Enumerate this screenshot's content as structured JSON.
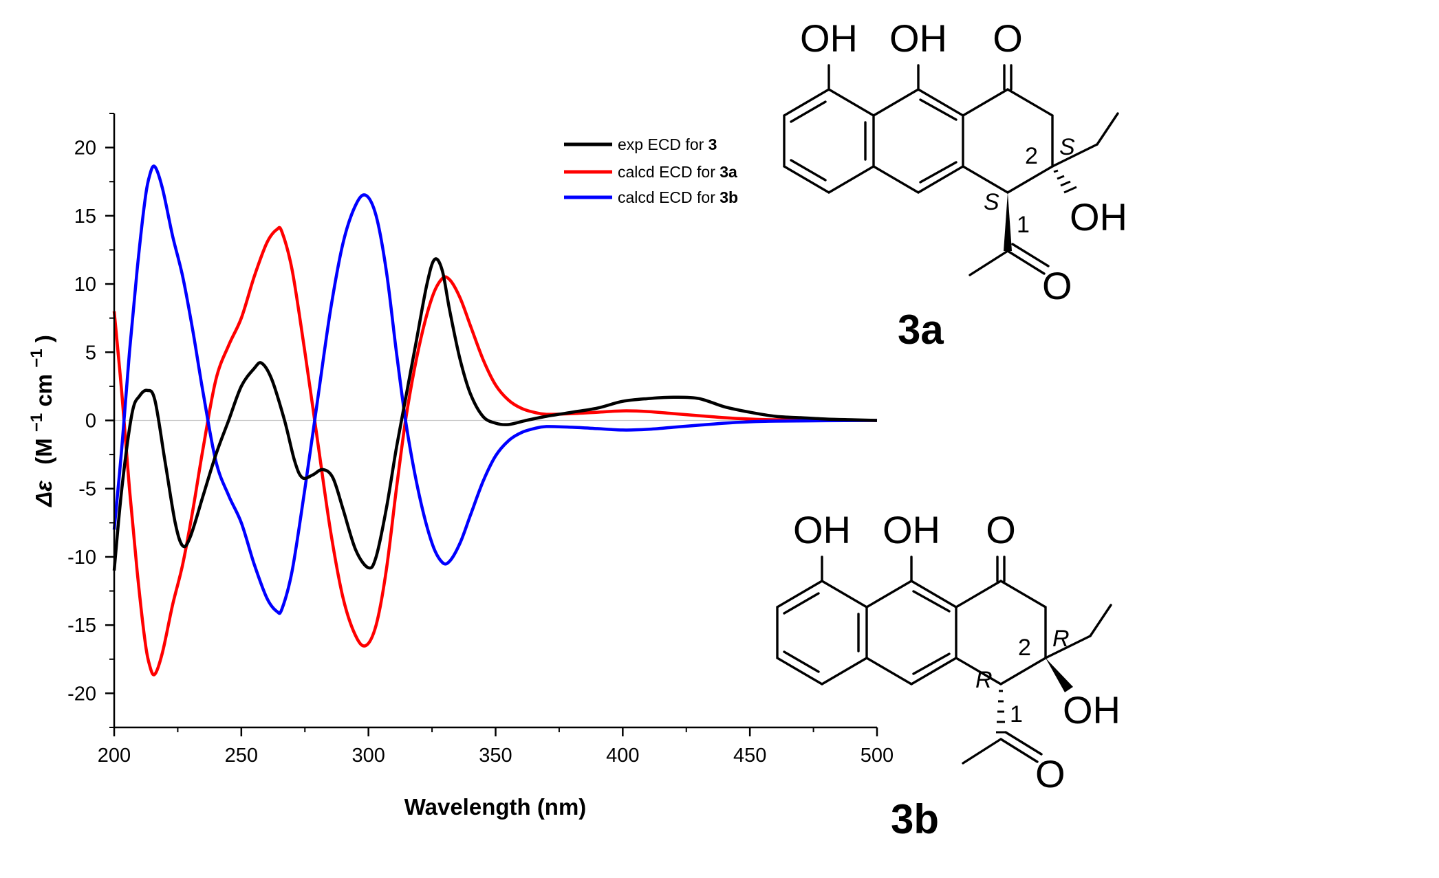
{
  "chart_data": {
    "type": "line",
    "xlabel": "Wavelength (nm)",
    "ylabel": {
      "symbol": "Δε",
      "open": "(M",
      "sup1": "−1",
      "mid": "cm",
      "sup2": "−1",
      "close": ")"
    },
    "xlim": [
      200,
      500
    ],
    "ylim": [
      -22.5,
      22.5
    ],
    "xticks": [
      200,
      250,
      300,
      350,
      400,
      450,
      500
    ],
    "yticks": [
      20,
      15,
      10,
      5,
      0,
      -5,
      -10,
      -15,
      -20
    ],
    "x_tick_labels": [
      "200",
      "250",
      "300",
      "350",
      "400",
      "450",
      "500"
    ],
    "y_tick_labels": [
      "20",
      "15",
      "10",
      "5",
      "0",
      "-5",
      "-10",
      "-15",
      "-20"
    ],
    "zero_line": true,
    "grid": false,
    "legend_position": "top-right",
    "series": [
      {
        "name": "exp ECD for 3",
        "label_prefix": "exp ECD for ",
        "label_bold": "3",
        "color": "#000000",
        "points": [
          [
            200,
            -11
          ],
          [
            203,
            -5
          ],
          [
            207,
            0.5
          ],
          [
            210,
            1.8
          ],
          [
            213,
            2.2
          ],
          [
            216,
            1.5
          ],
          [
            220,
            -3
          ],
          [
            224,
            -7.5
          ],
          [
            227,
            -9.2
          ],
          [
            230,
            -8.5
          ],
          [
            235,
            -5.5
          ],
          [
            240,
            -2.5
          ],
          [
            245,
            0
          ],
          [
            250,
            2.5
          ],
          [
            255,
            3.8
          ],
          [
            258,
            4.2
          ],
          [
            262,
            3
          ],
          [
            267,
            0
          ],
          [
            271,
            -3
          ],
          [
            274,
            -4.2
          ],
          [
            278,
            -4
          ],
          [
            282,
            -3.6
          ],
          [
            286,
            -4.2
          ],
          [
            290,
            -6.5
          ],
          [
            295,
            -9.5
          ],
          [
            300,
            -10.8
          ],
          [
            303,
            -10
          ],
          [
            307,
            -6.5
          ],
          [
            311,
            -2
          ],
          [
            315,
            2
          ],
          [
            319,
            6
          ],
          [
            323,
            10
          ],
          [
            326,
            11.8
          ],
          [
            329,
            11
          ],
          [
            332,
            8
          ],
          [
            336,
            4.5
          ],
          [
            340,
            2
          ],
          [
            345,
            0.3
          ],
          [
            350,
            -0.2
          ],
          [
            355,
            -0.3
          ],
          [
            362,
            0
          ],
          [
            370,
            0.3
          ],
          [
            380,
            0.6
          ],
          [
            390,
            0.9
          ],
          [
            400,
            1.4
          ],
          [
            410,
            1.6
          ],
          [
            420,
            1.7
          ],
          [
            430,
            1.6
          ],
          [
            440,
            1
          ],
          [
            450,
            0.6
          ],
          [
            460,
            0.3
          ],
          [
            470,
            0.2
          ],
          [
            480,
            0.1
          ],
          [
            490,
            0.05
          ],
          [
            500,
            0
          ]
        ]
      },
      {
        "name": "calcd ECD for 3a",
        "label_prefix": "calcd ECD for ",
        "label_bold": "3a",
        "color": "#ff0000",
        "points": [
          [
            200,
            8
          ],
          [
            203,
            2
          ],
          [
            206,
            -5
          ],
          [
            209,
            -11
          ],
          [
            212,
            -16
          ],
          [
            214,
            -18
          ],
          [
            216,
            -18.6
          ],
          [
            219,
            -17
          ],
          [
            223,
            -13.5
          ],
          [
            227,
            -10.5
          ],
          [
            231,
            -6.5
          ],
          [
            235,
            -2
          ],
          [
            240,
            3
          ],
          [
            245,
            5.5
          ],
          [
            250,
            7.5
          ],
          [
            255,
            10.5
          ],
          [
            260,
            13
          ],
          [
            264,
            14
          ],
          [
            266,
            13.8
          ],
          [
            270,
            11
          ],
          [
            275,
            5
          ],
          [
            280,
            -1.5
          ],
          [
            285,
            -8
          ],
          [
            290,
            -13
          ],
          [
            295,
            -15.8
          ],
          [
            299,
            -16.5
          ],
          [
            303,
            -15
          ],
          [
            307,
            -11
          ],
          [
            311,
            -5
          ],
          [
            315,
            0.5
          ],
          [
            320,
            5.5
          ],
          [
            325,
            9
          ],
          [
            329,
            10.4
          ],
          [
            332,
            10.3
          ],
          [
            336,
            9
          ],
          [
            340,
            7
          ],
          [
            345,
            4.5
          ],
          [
            350,
            2.6
          ],
          [
            355,
            1.5
          ],
          [
            360,
            0.9
          ],
          [
            365,
            0.6
          ],
          [
            370,
            0.45
          ],
          [
            380,
            0.5
          ],
          [
            390,
            0.6
          ],
          [
            400,
            0.7
          ],
          [
            410,
            0.65
          ],
          [
            420,
            0.5
          ],
          [
            430,
            0.35
          ],
          [
            440,
            0.2
          ],
          [
            450,
            0.1
          ],
          [
            460,
            0.05
          ],
          [
            480,
            0.02
          ],
          [
            500,
            0
          ]
        ]
      },
      {
        "name": "calcd ECD for 3b",
        "label_prefix": "calcd ECD for ",
        "label_bold": "3b",
        "color": "#0000ff",
        "points": [
          [
            200,
            -8
          ],
          [
            203,
            -2
          ],
          [
            206,
            5
          ],
          [
            209,
            11
          ],
          [
            212,
            16
          ],
          [
            214,
            18
          ],
          [
            216,
            18.6
          ],
          [
            219,
            17
          ],
          [
            223,
            13.5
          ],
          [
            227,
            10.5
          ],
          [
            231,
            6.5
          ],
          [
            235,
            2
          ],
          [
            240,
            -3
          ],
          [
            245,
            -5.5
          ],
          [
            250,
            -7.5
          ],
          [
            255,
            -10.5
          ],
          [
            260,
            -13
          ],
          [
            264,
            -14
          ],
          [
            266,
            -13.8
          ],
          [
            270,
            -11
          ],
          [
            275,
            -5
          ],
          [
            280,
            1.5
          ],
          [
            285,
            8
          ],
          [
            290,
            13
          ],
          [
            295,
            15.8
          ],
          [
            299,
            16.5
          ],
          [
            303,
            15
          ],
          [
            307,
            11
          ],
          [
            311,
            5
          ],
          [
            315,
            -0.5
          ],
          [
            320,
            -5.5
          ],
          [
            325,
            -9
          ],
          [
            329,
            -10.4
          ],
          [
            332,
            -10.3
          ],
          [
            336,
            -9
          ],
          [
            340,
            -7
          ],
          [
            345,
            -4.5
          ],
          [
            350,
            -2.6
          ],
          [
            355,
            -1.5
          ],
          [
            360,
            -0.9
          ],
          [
            365,
            -0.6
          ],
          [
            370,
            -0.45
          ],
          [
            380,
            -0.5
          ],
          [
            390,
            -0.6
          ],
          [
            400,
            -0.7
          ],
          [
            410,
            -0.65
          ],
          [
            420,
            -0.5
          ],
          [
            430,
            -0.35
          ],
          [
            440,
            -0.2
          ],
          [
            450,
            -0.1
          ],
          [
            460,
            -0.05
          ],
          [
            480,
            -0.02
          ],
          [
            500,
            0
          ]
        ]
      }
    ]
  },
  "structures": {
    "s3a": {
      "name": "3a",
      "oh_left": "OH",
      "oh_mid": "OH",
      "o_top": "O",
      "stereo_c2": "S",
      "stereo_c1": "S",
      "num_c2": "2",
      "num_c1": "1",
      "oh_c2": "OH",
      "o_acetyl": "O"
    },
    "s3b": {
      "name": "3b",
      "oh_left": "OH",
      "oh_mid": "OH",
      "o_top": "O",
      "stereo_c2": "R",
      "stereo_c1": "R",
      "num_c2": "2",
      "num_c1": "1",
      "oh_c2": "OH",
      "o_acetyl": "O"
    }
  }
}
